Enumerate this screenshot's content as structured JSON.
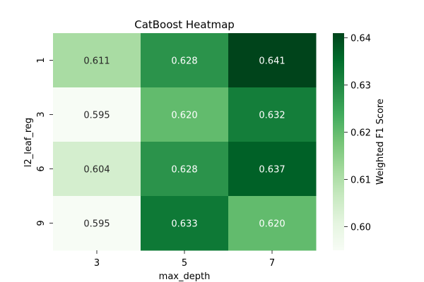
{
  "chart_data": {
    "type": "heatmap",
    "title": "CatBoost Heatmap",
    "xlabel": "max_depth",
    "ylabel": "l2_leaf_reg",
    "x_categories": [
      "3",
      "5",
      "7"
    ],
    "y_categories": [
      "1",
      "3",
      "6",
      "9"
    ],
    "values": [
      [
        0.611,
        0.628,
        0.641
      ],
      [
        0.595,
        0.62,
        0.632
      ],
      [
        0.604,
        0.628,
        0.637
      ],
      [
        0.595,
        0.633,
        0.62
      ]
    ],
    "value_labels": [
      [
        "0.611",
        "0.628",
        "0.641"
      ],
      [
        "0.595",
        "0.620",
        "0.632"
      ],
      [
        "0.604",
        "0.628",
        "0.637"
      ],
      [
        "0.595",
        "0.633",
        "0.620"
      ]
    ],
    "colorbar": {
      "label": "Weighted F1 Score",
      "range": [
        0.595,
        0.641
      ],
      "ticks": [
        "0.60",
        "0.61",
        "0.62",
        "0.63",
        "0.64"
      ],
      "tick_values": [
        0.6,
        0.61,
        0.62,
        0.63,
        0.64
      ],
      "colormap": "Greens"
    }
  }
}
